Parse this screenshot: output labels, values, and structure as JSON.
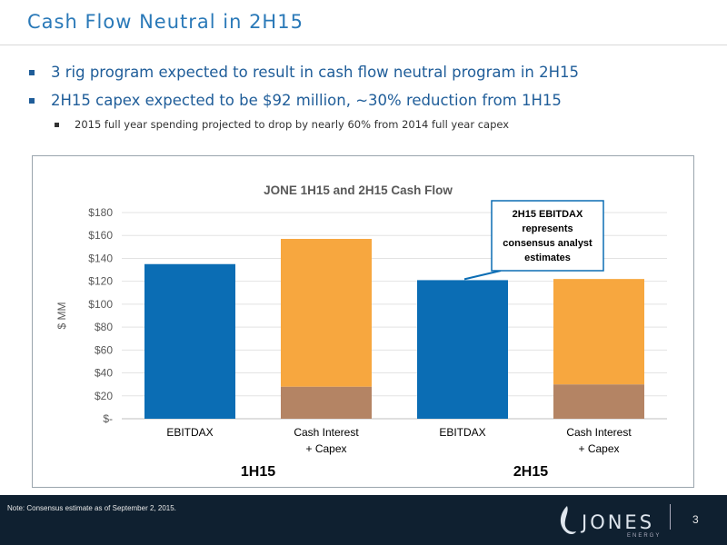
{
  "slide": {
    "title": "Cash Flow Neutral in 2H15",
    "bullets": [
      "3 rig program expected to result in cash flow neutral program in 2H15",
      "2H15 capex expected to be $92 million, ~30% reduction from 1H15"
    ],
    "subbullet": "2015 full year spending projected to drop by nearly 60% from 2014 full year capex",
    "note": "Note: Consensus estimate as of September 2, 2015.",
    "page_number": "3",
    "logo": {
      "name": "JONES",
      "sub": "ENERGY"
    }
  },
  "chart_data": {
    "type": "bar",
    "title": "JONE 1H15 and 2H15 Cash Flow",
    "ylabel": "$ MM",
    "ylim": [
      0,
      180
    ],
    "yticks": [
      "$-",
      "$20",
      "$40",
      "$60",
      "$80",
      "$100",
      "$120",
      "$140",
      "$160",
      "$180"
    ],
    "bars": [
      {
        "label": [
          "EBITDAX"
        ],
        "group": "1H15",
        "segments": [
          {
            "value": 135,
            "color": "#0b6db4"
          }
        ]
      },
      {
        "label": [
          "Cash Interest",
          "+ Capex"
        ],
        "group": "1H15",
        "segments": [
          {
            "value": 28,
            "color": "#b48464"
          },
          {
            "value": 129,
            "color": "#f7a73f"
          }
        ]
      },
      {
        "label": [
          "EBITDAX"
        ],
        "group": "2H15",
        "segments": [
          {
            "value": 121,
            "color": "#0b6db4"
          }
        ]
      },
      {
        "label": [
          "Cash Interest",
          "+ Capex"
        ],
        "group": "2H15",
        "segments": [
          {
            "value": 30,
            "color": "#b48464"
          },
          {
            "value": 92,
            "color": "#f7a73f"
          }
        ]
      }
    ],
    "groups": [
      "1H15",
      "2H15"
    ],
    "callout": [
      "2H15 EBITDAX",
      "represents",
      "consensus analyst",
      "estimates"
    ]
  }
}
